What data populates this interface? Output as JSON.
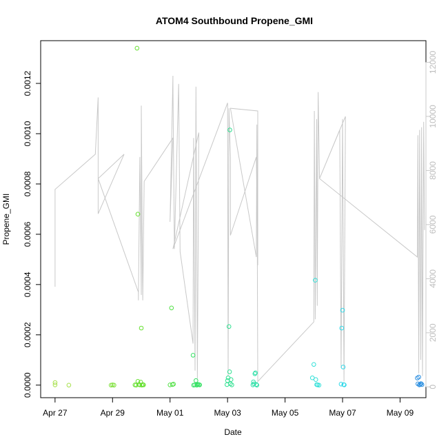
{
  "chart_data": {
    "type": "scatter",
    "title": "ATOM4 Southbound Propene_GMI",
    "xlabel": "Date",
    "ylabel": "Propene_GMI",
    "x_ticks": [
      {
        "day": 0,
        "label": "Apr 27"
      },
      {
        "day": 2,
        "label": "Apr 29"
      },
      {
        "day": 4,
        "label": "May 01"
      },
      {
        "day": 6,
        "label": "May 03"
      },
      {
        "day": 8,
        "label": "May 05"
      },
      {
        "day": 10,
        "label": "May 07"
      },
      {
        "day": 12,
        "label": "May 09"
      }
    ],
    "xlim": [
      -0.5,
      12.9
    ],
    "ylim": [
      -5e-05,
      0.00137
    ],
    "y_ticks": [
      {
        "value": 0.0,
        "label": "0.0000"
      },
      {
        "value": 0.0002,
        "label": "0.0002"
      },
      {
        "value": 0.0004,
        "label": "0.0004"
      },
      {
        "value": 0.0006,
        "label": "0.0006"
      },
      {
        "value": 0.0008,
        "label": "0.0008"
      },
      {
        "value": 0.001,
        "label": "0.0010"
      },
      {
        "value": 0.0012,
        "label": "0.0012"
      }
    ],
    "y2lim": [
      -400,
      12800
    ],
    "y2_ticks": [
      {
        "value": 0,
        "label": "0"
      },
      {
        "value": 2000,
        "label": "2000"
      },
      {
        "value": 4000,
        "label": "4000"
      },
      {
        "value": 6000,
        "label": "6000"
      },
      {
        "value": 8000,
        "label": "8000"
      },
      {
        "value": 10000,
        "label": "10000"
      },
      {
        "value": 12000,
        "label": "12000"
      }
    ],
    "altitude_line_color": "#c8c8c8",
    "points": [
      {
        "x": 0.0,
        "y": 1e-05,
        "color": "#a6e04a"
      },
      {
        "x": 0.0,
        "y": 1e-06,
        "color": "#a6e04a"
      },
      {
        "x": 0.48,
        "y": 0.0,
        "color": "#a6e04a"
      },
      {
        "x": 1.95,
        "y": 0.0,
        "color": "#7ee03a"
      },
      {
        "x": 2.0,
        "y": 1e-06,
        "color": "#7ee03a"
      },
      {
        "x": 2.05,
        "y": 0.0,
        "color": "#7ee03a"
      },
      {
        "x": 2.78,
        "y": 1e-06,
        "color": "#66e030"
      },
      {
        "x": 2.82,
        "y": 0.0,
        "color": "#66e030"
      },
      {
        "x": 2.85,
        "y": 0.00134,
        "color": "#66e030"
      },
      {
        "x": 2.88,
        "y": 0.00068,
        "color": "#66e030"
      },
      {
        "x": 2.88,
        "y": 1.5e-05,
        "color": "#66e030"
      },
      {
        "x": 2.92,
        "y": 2e-06,
        "color": "#66e030"
      },
      {
        "x": 2.95,
        "y": 1e-06,
        "color": "#66e030"
      },
      {
        "x": 2.98,
        "y": 1.2e-05,
        "color": "#66e030"
      },
      {
        "x": 3.0,
        "y": 0.000227,
        "color": "#66e030"
      },
      {
        "x": 3.02,
        "y": 0.0,
        "color": "#66e030"
      },
      {
        "x": 3.05,
        "y": 2e-06,
        "color": "#66e030"
      },
      {
        "x": 3.08,
        "y": 1e-06,
        "color": "#66e030"
      },
      {
        "x": 4.0,
        "y": 1e-06,
        "color": "#50e044"
      },
      {
        "x": 4.05,
        "y": 0.000307,
        "color": "#50e044"
      },
      {
        "x": 4.08,
        "y": 2e-06,
        "color": "#50e044"
      },
      {
        "x": 4.12,
        "y": 4e-06,
        "color": "#50e044"
      },
      {
        "x": 4.8,
        "y": 0.000119,
        "color": "#30e060"
      },
      {
        "x": 4.82,
        "y": 0.0,
        "color": "#30e060"
      },
      {
        "x": 4.86,
        "y": 1e-06,
        "color": "#30e060"
      },
      {
        "x": 4.9,
        "y": 1.8e-05,
        "color": "#30e060"
      },
      {
        "x": 4.93,
        "y": 0.0,
        "color": "#30e060"
      },
      {
        "x": 4.96,
        "y": 3e-06,
        "color": "#30e060"
      },
      {
        "x": 5.0,
        "y": 2e-06,
        "color": "#30e060"
      },
      {
        "x": 5.03,
        "y": 1e-06,
        "color": "#30e060"
      },
      {
        "x": 5.98,
        "y": 2e-06,
        "color": "#2ee090"
      },
      {
        "x": 6.0,
        "y": 1.8e-05,
        "color": "#2ee090"
      },
      {
        "x": 6.02,
        "y": 2.9e-05,
        "color": "#2ee090"
      },
      {
        "x": 6.05,
        "y": 0.000233,
        "color": "#2ee090"
      },
      {
        "x": 6.07,
        "y": 5.3e-05,
        "color": "#2ee090"
      },
      {
        "x": 6.08,
        "y": 0.001015,
        "color": "#2ee090"
      },
      {
        "x": 6.1,
        "y": 5e-06,
        "color": "#2ee090"
      },
      {
        "x": 6.12,
        "y": 2.2e-05,
        "color": "#2ee090"
      },
      {
        "x": 6.15,
        "y": 1e-06,
        "color": "#2ee090"
      },
      {
        "x": 6.88,
        "y": 1e-06,
        "color": "#2ee0a8"
      },
      {
        "x": 6.9,
        "y": 1.3e-05,
        "color": "#2ee0a8"
      },
      {
        "x": 6.92,
        "y": 5e-06,
        "color": "#2ee0a8"
      },
      {
        "x": 6.95,
        "y": 4.5e-05,
        "color": "#2ee0a8"
      },
      {
        "x": 6.97,
        "y": 4.9e-05,
        "color": "#2ee0a8"
      },
      {
        "x": 7.0,
        "y": 3e-06,
        "color": "#2ee0a8"
      },
      {
        "x": 7.02,
        "y": 0.0,
        "color": "#2ee0a8"
      },
      {
        "x": 8.95,
        "y": 2.9e-05,
        "color": "#30e0d8"
      },
      {
        "x": 9.0,
        "y": 8.2e-05,
        "color": "#30e0d8"
      },
      {
        "x": 9.05,
        "y": 0.000417,
        "color": "#30e0d8"
      },
      {
        "x": 9.07,
        "y": 2.2e-05,
        "color": "#30e0d8"
      },
      {
        "x": 9.1,
        "y": 2e-06,
        "color": "#30e0d8"
      },
      {
        "x": 9.13,
        "y": 1e-06,
        "color": "#30e0d8"
      },
      {
        "x": 9.18,
        "y": 0.0,
        "color": "#30e0d8"
      },
      {
        "x": 9.95,
        "y": 4e-06,
        "color": "#30d8e8"
      },
      {
        "x": 9.97,
        "y": 0.000227,
        "color": "#30d8e8"
      },
      {
        "x": 10.0,
        "y": 0.000298,
        "color": "#30d8e8"
      },
      {
        "x": 10.02,
        "y": 7.2e-05,
        "color": "#30d8e8"
      },
      {
        "x": 10.04,
        "y": 2e-06,
        "color": "#30d8e8"
      },
      {
        "x": 10.06,
        "y": 1e-06,
        "color": "#30d8e8"
      },
      {
        "x": 12.6,
        "y": 2.8e-05,
        "color": "#2a8ee0"
      },
      {
        "x": 12.62,
        "y": 5e-06,
        "color": "#2a8ee0"
      },
      {
        "x": 12.65,
        "y": 3.2e-05,
        "color": "#2a8ee0"
      },
      {
        "x": 12.67,
        "y": 1e-06,
        "color": "#2a8ee0"
      },
      {
        "x": 12.7,
        "y": 3e-06,
        "color": "#2a8ee0"
      },
      {
        "x": 12.73,
        "y": 6e-06,
        "color": "#2a8ee0"
      },
      {
        "x": 12.76,
        "y": 2e-06,
        "color": "#2a8ee0"
      }
    ],
    "altitude_path": [
      [
        0.0,
        3700
      ],
      [
        0.0,
        7300
      ],
      [
        1.4,
        8600
      ],
      [
        1.5,
        10700
      ],
      [
        1.5,
        6400
      ],
      [
        2.4,
        8600
      ],
      [
        1.5,
        7700
      ],
      [
        2.9,
        3500
      ],
      [
        2.9,
        3200
      ],
      [
        2.95,
        8500
      ],
      [
        3.0,
        3400
      ],
      [
        3.0,
        10400
      ],
      [
        3.05,
        3200
      ],
      [
        3.1,
        7600
      ],
      [
        4.1,
        9200
      ],
      [
        4.0,
        6100
      ],
      [
        4.1,
        11500
      ],
      [
        4.1,
        11200
      ],
      [
        4.15,
        5100
      ],
      [
        4.3,
        11200
      ],
      [
        4.35,
        5000
      ],
      [
        4.8,
        1600
      ],
      [
        4.82,
        9200
      ],
      [
        4.87,
        600
      ],
      [
        4.9,
        11100
      ],
      [
        4.95,
        300
      ],
      [
        5.0,
        9400
      ],
      [
        4.1,
        5100
      ],
      [
        6.0,
        10500
      ],
      [
        6.02,
        400
      ],
      [
        6.05,
        10300
      ],
      [
        6.1,
        8500
      ],
      [
        6.1,
        5600
      ],
      [
        7.0,
        8500
      ],
      [
        7.05,
        4500
      ],
      [
        7.05,
        10200
      ],
      [
        6.1,
        10300
      ],
      [
        7.0,
        4800
      ],
      [
        7.02,
        9700
      ],
      [
        7.05,
        200
      ],
      [
        9.0,
        2400
      ],
      [
        9.02,
        10200
      ],
      [
        9.05,
        2500
      ],
      [
        9.1,
        9900
      ],
      [
        9.12,
        3000
      ],
      [
        9.15,
        10900
      ],
      [
        9.2,
        7700
      ],
      [
        9.9,
        9500
      ],
      [
        9.95,
        700
      ],
      [
        10.0,
        9900
      ],
      [
        10.05,
        200
      ],
      [
        10.1,
        10000
      ],
      [
        9.2,
        7700
      ],
      [
        12.6,
        4800
      ],
      [
        12.62,
        9300
      ],
      [
        12.65,
        500
      ],
      [
        12.68,
        9500
      ],
      [
        12.72,
        1000
      ],
      [
        12.75,
        9600
      ],
      [
        12.78,
        400
      ],
      [
        12.82,
        9800
      ],
      [
        12.85,
        5800
      ]
    ]
  }
}
